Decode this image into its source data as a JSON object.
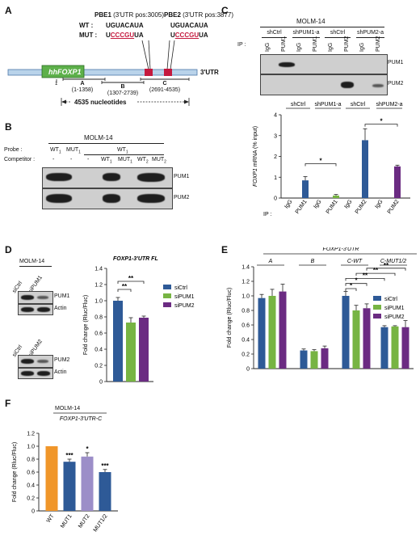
{
  "panelA": {
    "label": "A",
    "pbe1": "PBE1",
    "pbe1_pos": "(3'UTR pos:3005)",
    "pbe2": "PBE2",
    "pbe2_pos": "(3'UTR pos:3877)",
    "wt_label": "WT :",
    "mut_label": "MUT :",
    "wt1": "UGUACAUA",
    "mut1_pre": "U",
    "mut1_red": "CCCGU",
    "mut1_post": "UA",
    "wt2": "UGUACAUA",
    "mut2_pre": "U",
    "mut2_red": "CCCGU",
    "mut2_post": "UA",
    "gene": "hFOXP1",
    "utr": "3'UTR",
    "start": "1",
    "segA": "A",
    "segA_range": "(1-1358)",
    "segB": "B",
    "segB_range": "(1307-2739)",
    "segC": "C",
    "segC_range": "(2691-4535)",
    "length": "4535 nucleotides"
  },
  "panelB": {
    "label": "B",
    "cell": "MOLM-14",
    "probe_label": "Probe :",
    "competitor_label": "Competitor :",
    "probe": [
      "WT",
      "MUT",
      "WT"
    ],
    "probe_sub": [
      "1",
      "1",
      "1"
    ],
    "competitor": [
      "-",
      "-",
      "-",
      "WT",
      "MUT",
      "WT",
      "MUT"
    ],
    "competitor_sub": [
      "",
      "",
      "",
      "1",
      "1",
      "2",
      "2"
    ],
    "blots": [
      "PUM1",
      "PUM2"
    ]
  },
  "panelC": {
    "label": "C",
    "cell": "MOLM-14",
    "groups": [
      "shCtrl",
      "shPUM1-a",
      "shCtrl",
      "shPUM2-a"
    ],
    "ip_label": "IP :",
    "lanes": [
      "IgG",
      "PUM1",
      "IgG",
      "PUM1",
      "IgG",
      "PUM2",
      "IgG",
      "PUM2"
    ],
    "blots": [
      "PUM1",
      "PUM2"
    ]
  },
  "panelD": {
    "label": "D",
    "cell": "MOLM-14",
    "wb1_lanes": [
      "siCtrl",
      "siPUM1"
    ],
    "wb1_blots": [
      "PUM1",
      "Actin"
    ],
    "wb2_lanes": [
      "siCtrl",
      "siPUM2"
    ],
    "wb2_blots": [
      "PUM2",
      "Actin"
    ]
  },
  "panelE": {
    "label": "E",
    "title": "FOXP1-3'UTR",
    "groups": [
      "A",
      "B",
      "C-WT",
      "C-MUT1/2"
    ]
  },
  "panelF": {
    "label": "F",
    "cell": "MOLM-14"
  },
  "colors": {
    "blue": "#2e5a97",
    "green": "#77b443",
    "purple": "#6b2b82",
    "orange": "#f0962a",
    "lilac": "#9c8ec8",
    "red": "#c4193d"
  },
  "chart_data": [
    {
      "id": "C",
      "type": "bar",
      "categories": [
        "IgG",
        "PUM1",
        "IgG",
        "PUM1",
        "IgG",
        "PUM2",
        "IgG",
        "PUM2"
      ],
      "groups": [
        "shCtrl",
        "shPUM1-a",
        "shCtrl",
        "shPUM2-a"
      ],
      "values": [
        0.0,
        0.85,
        0.0,
        0.12,
        0.0,
        2.78,
        0.0,
        1.52
      ],
      "errors": [
        0.0,
        0.18,
        0.0,
        0.05,
        0.0,
        0.55,
        0.0,
        0.06
      ],
      "bar_colors": [
        "#2e5a97",
        "#2e5a97",
        "#77b443",
        "#77b443",
        "#2e5a97",
        "#2e5a97",
        "#6b2b82",
        "#6b2b82"
      ],
      "ylabel_italic": "FOXP1",
      "ylabel": "mRNA (% input)",
      "ylim": [
        0,
        4
      ],
      "yticks": [
        "0",
        "1",
        "2",
        "3",
        "4"
      ],
      "xaxis_prefix": "IP :",
      "significance": [
        "*",
        "*"
      ]
    },
    {
      "id": "D",
      "type": "bar",
      "title": "FOXP1-3'UTR FL",
      "categories": [
        "siCtrl",
        "siPUM1",
        "siPUM2"
      ],
      "values": [
        1.0,
        0.73,
        0.79
      ],
      "errors": [
        0.04,
        0.06,
        0.02
      ],
      "bar_colors": [
        "#2e5a97",
        "#77b443",
        "#6b2b82"
      ],
      "ylabel": "Fold change (Rluc/Fluc)",
      "ylim": [
        0,
        1.4
      ],
      "yticks": [
        "0",
        "0.2",
        "0.4",
        "0.6",
        "0.8",
        "1.0",
        "1.2",
        "1.4"
      ],
      "significance": [
        "**",
        "**"
      ],
      "legend": [
        "siCtrl",
        "siPUM1",
        "siPUM2"
      ]
    },
    {
      "id": "E",
      "type": "bar",
      "categories": [
        "A",
        "B",
        "C-WT",
        "C-MUT1/2"
      ],
      "series": [
        {
          "name": "siCtrl",
          "values": [
            0.97,
            0.25,
            1.0,
            0.57
          ],
          "errors": [
            0.05,
            0.02,
            0.06,
            0.02
          ]
        },
        {
          "name": "siPUM1",
          "values": [
            1.0,
            0.24,
            0.8,
            0.58
          ],
          "errors": [
            0.09,
            0.02,
            0.07,
            0.01
          ]
        },
        {
          "name": "siPUM2",
          "values": [
            1.06,
            0.28,
            0.83,
            0.57
          ],
          "errors": [
            0.1,
            0.03,
            0.06,
            0.09
          ]
        }
      ],
      "ylabel": "Fold change (Rluc/Fluc)",
      "ylim": [
        0,
        1.4
      ],
      "yticks": [
        "0",
        "0.2",
        "0.4",
        "0.6",
        "0.8",
        "1.0",
        "1.2",
        "1.4"
      ],
      "significance": [
        "*",
        "*",
        "**",
        "**",
        "**"
      ],
      "legend": [
        "siCtrl",
        "siPUM1",
        "siPUM2"
      ]
    },
    {
      "id": "F",
      "type": "bar",
      "title": "FOXP1-3'UTR-C",
      "categories": [
        "WT",
        "MUT1",
        "MUT2",
        "MUT1/2"
      ],
      "values": [
        1.0,
        0.76,
        0.84,
        0.6
      ],
      "errors": [
        0.0,
        0.04,
        0.06,
        0.04
      ],
      "bar_colors": [
        "#f0962a",
        "#2e5a97",
        "#9c8ec8",
        "#2e5a97"
      ],
      "ylabel": "Fold change (Rluc/Fluc)",
      "ylim": [
        0,
        1.2
      ],
      "yticks": [
        "0",
        "0.2",
        "0.4",
        "0.6",
        "0.8",
        "1.0",
        "1.2"
      ],
      "significance": [
        "",
        "***",
        "*",
        "***"
      ]
    }
  ]
}
